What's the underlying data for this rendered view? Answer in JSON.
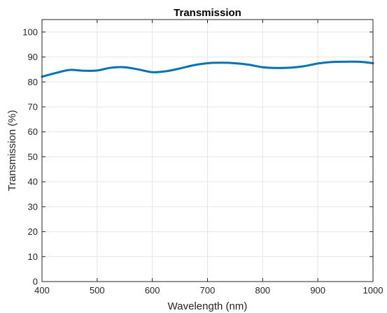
{
  "chart_data": {
    "type": "line",
    "title": "Transmission",
    "xlabel": "Wavelength (nm)",
    "ylabel": "Transmission (%)",
    "xlim": [
      400,
      1000
    ],
    "ylim": [
      0,
      105
    ],
    "xticks": [
      400,
      500,
      600,
      700,
      800,
      900,
      1000
    ],
    "yticks": [
      0,
      10,
      20,
      30,
      40,
      50,
      60,
      70,
      80,
      90,
      100
    ],
    "grid": true,
    "series": [
      {
        "color": "#0072BD",
        "x": [
          400,
          425,
          450,
          475,
          500,
          525,
          550,
          575,
          600,
          625,
          650,
          675,
          700,
          725,
          750,
          775,
          800,
          825,
          850,
          875,
          900,
          925,
          950,
          975,
          1000
        ],
        "y": [
          82.1,
          83.6,
          84.8,
          84.5,
          84.6,
          85.7,
          85.9,
          85.0,
          83.9,
          84.3,
          85.4,
          86.7,
          87.5,
          87.7,
          87.5,
          86.9,
          85.9,
          85.6,
          85.7,
          86.3,
          87.4,
          88.0,
          88.1,
          88.1,
          87.5
        ]
      }
    ]
  }
}
